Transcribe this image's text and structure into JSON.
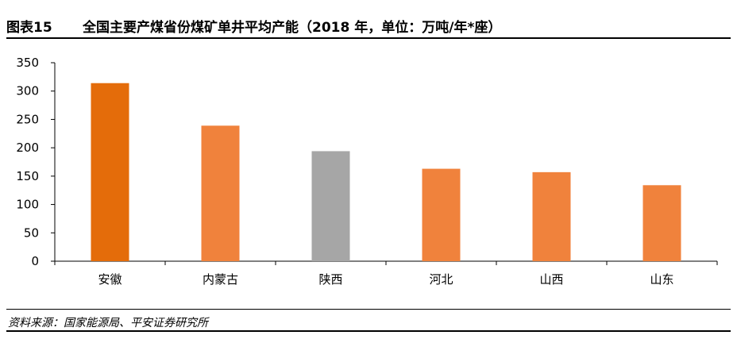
{
  "header": {
    "figure_label": "图表15",
    "title": "全国主要产煤省份煤矿单井平均产能（2018 年，单位：万吨/年*座）"
  },
  "source": "资料来源：国家能源局、平安证券研究所",
  "colors": {
    "primary": "#E46C0A",
    "secondary": "#F0823C",
    "highlight": "#A6A6A6",
    "axis": "#000000"
  },
  "chart_data": {
    "type": "bar",
    "title": "全国主要产煤省份煤矿单井平均产能（2018 年，单位：万吨/年*座）",
    "xlabel": "",
    "ylabel": "",
    "categories": [
      "安徽",
      "内蒙古",
      "陕西",
      "河北",
      "山西",
      "山东"
    ],
    "values": [
      314,
      239,
      194,
      163,
      157,
      134
    ],
    "bar_colors": [
      "#E46C0A",
      "#F0823C",
      "#A6A6A6",
      "#F0823C",
      "#F0823C",
      "#F0823C"
    ],
    "ylim": [
      0,
      350
    ],
    "yticks": [
      0,
      50,
      100,
      150,
      200,
      250,
      300,
      350
    ],
    "grid": false,
    "legend": "none"
  }
}
